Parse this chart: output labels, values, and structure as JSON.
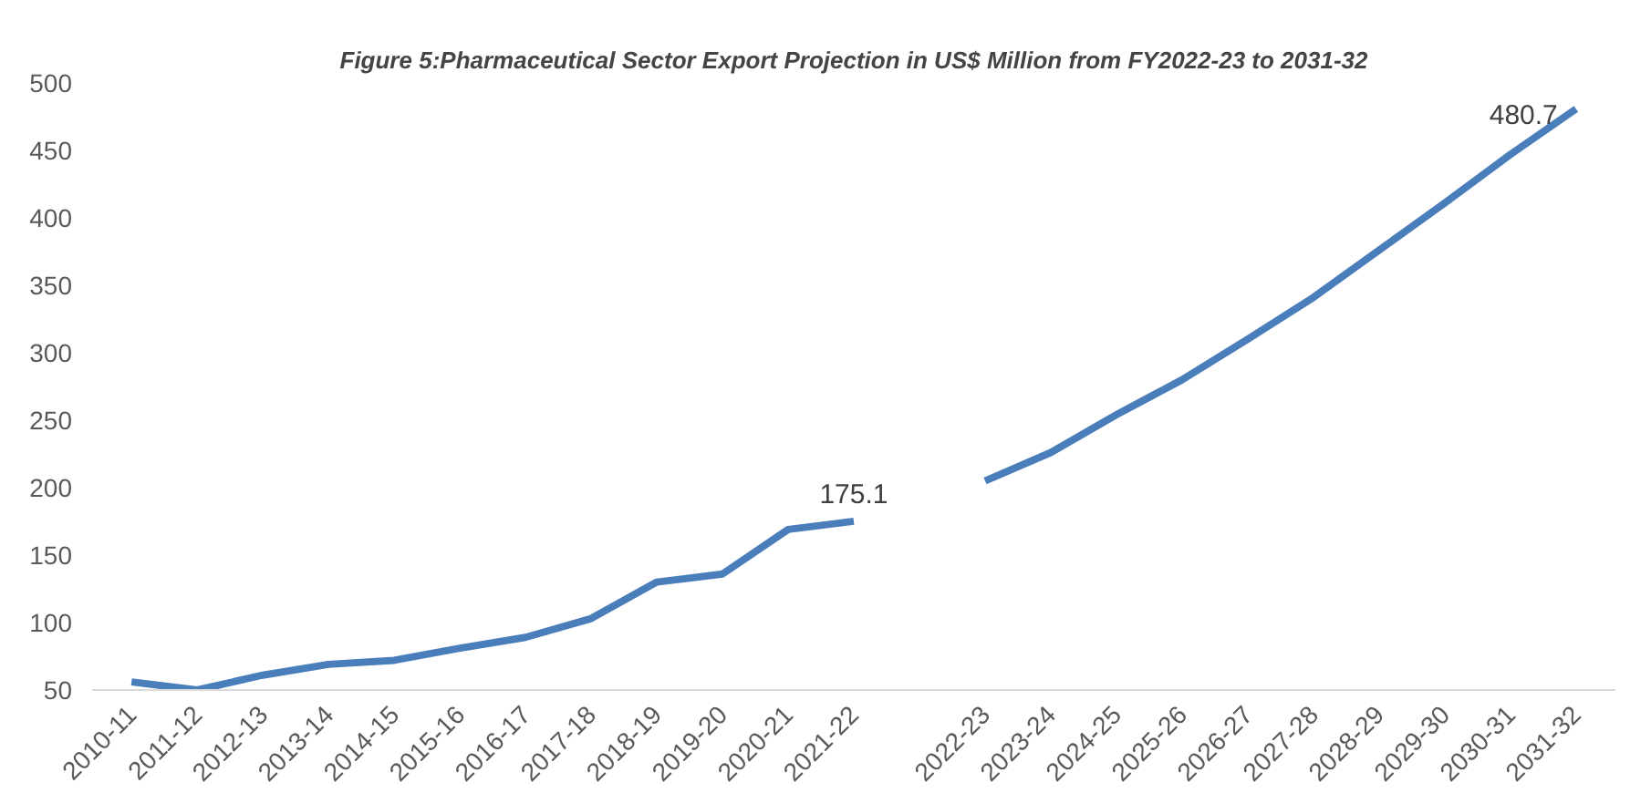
{
  "chart_data": {
    "type": "line",
    "title": "Figure 5:Pharmaceutical Sector Export Projection in US$ Million from FY2022-23 to 2031-32",
    "categories": [
      "2010-11",
      "2011-12",
      "2012-13",
      "2013-14",
      "2014-15",
      "2015-16",
      "2016-17",
      "2017-18",
      "2018-19",
      "2019-20",
      "2020-21",
      "2021-22",
      null,
      "2022-23",
      "2023-24",
      "2024-25",
      "2025-26",
      "2026-27",
      "2027-28",
      "2028-29",
      "2029-30",
      "2030-31",
      "2031-32"
    ],
    "series": [
      {
        "color": "#4a7ebb",
        "values": [
          56,
          50,
          61,
          69,
          72,
          81,
          89,
          103,
          130,
          136,
          169,
          175.1,
          null,
          205,
          226,
          254,
          280,
          310,
          341,
          376,
          411,
          447,
          480.7
        ],
        "value_labels": [
          null,
          null,
          null,
          null,
          null,
          null,
          null,
          null,
          null,
          null,
          null,
          "175.1",
          null,
          null,
          null,
          null,
          null,
          null,
          null,
          null,
          null,
          null,
          "480.7"
        ]
      }
    ],
    "ylim": [
      50,
      500
    ],
    "yticks": [
      50,
      100,
      150,
      200,
      250,
      300,
      350,
      400,
      450,
      500
    ],
    "grid": false,
    "marker": "none",
    "line_style": "solid"
  }
}
